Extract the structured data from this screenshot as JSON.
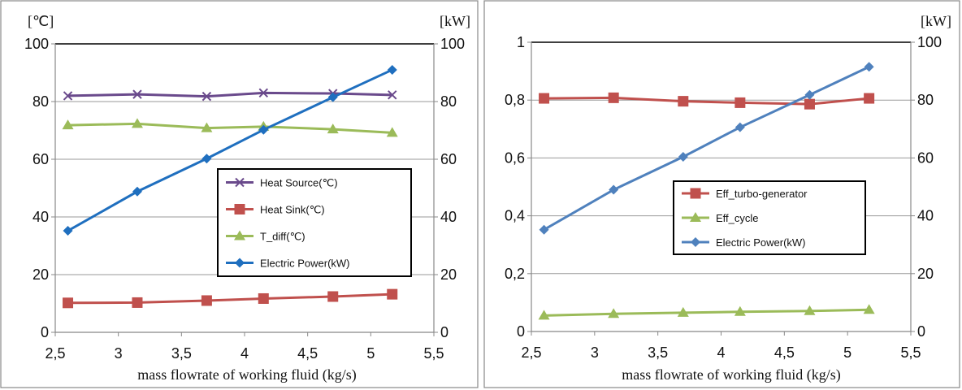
{
  "chart_data": [
    {
      "type": "line",
      "x": [
        2.6,
        3.15,
        3.7,
        4.15,
        4.7,
        5.17
      ],
      "xlim": [
        2.5,
        5.5
      ],
      "xticks": [
        "2,5",
        "3",
        "3,5",
        "4",
        "4,5",
        "5",
        "5,5"
      ],
      "xlabel": "mass flowrate of working fluid (kg/s)",
      "left_axis_unit": "[℃]",
      "right_axis_unit": "[kW]",
      "ylim_left": [
        0,
        100
      ],
      "ylim_right": [
        0,
        100
      ],
      "yticks_left": [
        "0",
        "20",
        "40",
        "60",
        "80",
        "100"
      ],
      "yticks_right": [
        "0",
        "20",
        "40",
        "60",
        "80",
        "100"
      ],
      "grid": "horizontal",
      "legend_position": "right",
      "series": [
        {
          "name": "Heat Source(℃)",
          "axis": "left",
          "marker": "x",
          "color": "#6a4a8c",
          "values": [
            82,
            82.5,
            81.8,
            83,
            82.8,
            82.3
          ]
        },
        {
          "name": "Heat Sink(℃)",
          "axis": "left",
          "marker": "square",
          "color": "#c0504d",
          "values": [
            10.2,
            10.3,
            11,
            11.7,
            12.4,
            13.2
          ]
        },
        {
          "name": "T_diff(℃)",
          "axis": "left",
          "marker": "triangle",
          "color": "#9bbb59",
          "values": [
            71.8,
            72.3,
            70.8,
            71.3,
            70.4,
            69.2
          ]
        },
        {
          "name": "Electric Power(kW)",
          "axis": "right",
          "marker": "diamond",
          "color": "#1f6fbf",
          "values": [
            35.2,
            48.8,
            60.2,
            70.2,
            81.5,
            91
          ]
        }
      ]
    },
    {
      "type": "line",
      "x": [
        2.6,
        3.15,
        3.7,
        4.15,
        4.7,
        5.17
      ],
      "xlim": [
        2.5,
        5.5
      ],
      "xticks": [
        "2,5",
        "3",
        "3,5",
        "4",
        "4,5",
        "5",
        "5,5"
      ],
      "xlabel": "mass flowrate of working fluid (kg/s)",
      "left_axis_unit": "",
      "right_axis_unit": "[kW]",
      "ylim_left": [
        0,
        1
      ],
      "ylim_right": [
        0,
        100
      ],
      "yticks_left": [
        "0",
        "0,2",
        "0,4",
        "0,6",
        "0,8",
        "1"
      ],
      "yticks_right": [
        "0",
        "20",
        "40",
        "60",
        "80",
        "100"
      ],
      "grid": "horizontal",
      "legend_position": "right",
      "series": [
        {
          "name": "Eff_turbo-generator",
          "axis": "left",
          "marker": "square",
          "color": "#c0504d",
          "values": [
            0.806,
            0.808,
            0.796,
            0.791,
            0.786,
            0.806
          ]
        },
        {
          "name": "Eff_cycle",
          "axis": "left",
          "marker": "triangle",
          "color": "#9bbb59",
          "values": [
            0.055,
            0.061,
            0.065,
            0.068,
            0.071,
            0.075
          ]
        },
        {
          "name": "Electric Power(kW)",
          "axis": "right",
          "marker": "diamond",
          "color": "#4f81bd",
          "values": [
            35.2,
            49,
            60.4,
            70.6,
            81.8,
            91.5
          ]
        }
      ]
    }
  ]
}
